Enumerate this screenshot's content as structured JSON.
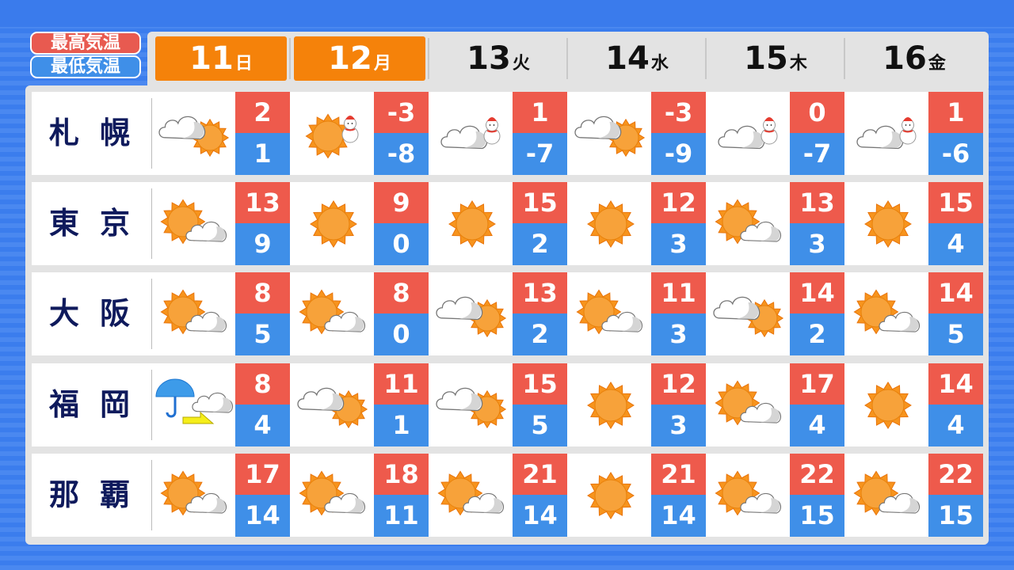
{
  "legend": {
    "high": "最高気温",
    "low": "最低気温"
  },
  "colors": {
    "high": "#ee5a4c",
    "low": "#3f8fe8",
    "today": "#f5820a",
    "city": "#0f1a5c"
  },
  "days": [
    {
      "num": "11",
      "wd": "日",
      "highlight": true
    },
    {
      "num": "12",
      "wd": "月",
      "highlight": true
    },
    {
      "num": "13",
      "wd": "火",
      "highlight": false
    },
    {
      "num": "14",
      "wd": "水",
      "highlight": false
    },
    {
      "num": "15",
      "wd": "木",
      "highlight": false
    },
    {
      "num": "16",
      "wd": "金",
      "highlight": false
    }
  ],
  "cities": [
    {
      "name": "札幌",
      "forecast": [
        {
          "icon": "cloudy-then-sunny",
          "high": "2",
          "low": "1"
        },
        {
          "icon": "sunny-with-snow",
          "high": "-3",
          "low": "-8"
        },
        {
          "icon": "cloudy-with-snow",
          "high": "1",
          "low": "-7"
        },
        {
          "icon": "cloudy-then-sunny",
          "high": "-3",
          "low": "-9"
        },
        {
          "icon": "cloudy-with-snow",
          "high": "0",
          "low": "-7"
        },
        {
          "icon": "cloudy-with-snow",
          "high": "1",
          "low": "-6"
        }
      ]
    },
    {
      "name": "東京",
      "forecast": [
        {
          "icon": "sunny-then-cloudy",
          "high": "13",
          "low": "9"
        },
        {
          "icon": "sunny",
          "high": "9",
          "low": "0"
        },
        {
          "icon": "sunny",
          "high": "15",
          "low": "2"
        },
        {
          "icon": "sunny",
          "high": "12",
          "low": "3"
        },
        {
          "icon": "sunny-then-cloudy",
          "high": "13",
          "low": "3"
        },
        {
          "icon": "sunny",
          "high": "15",
          "low": "4"
        }
      ]
    },
    {
      "name": "大阪",
      "forecast": [
        {
          "icon": "sunny-then-cloudy",
          "high": "8",
          "low": "5"
        },
        {
          "icon": "sunny-then-cloudy",
          "high": "8",
          "low": "0"
        },
        {
          "icon": "cloudy-then-sunny",
          "high": "13",
          "low": "2"
        },
        {
          "icon": "sunny-then-cloudy",
          "high": "11",
          "low": "3"
        },
        {
          "icon": "cloudy-then-sunny",
          "high": "14",
          "low": "2"
        },
        {
          "icon": "sunny-then-cloudy",
          "high": "14",
          "low": "5"
        }
      ]
    },
    {
      "name": "福岡",
      "forecast": [
        {
          "icon": "rain-then-cloudy",
          "high": "8",
          "low": "4"
        },
        {
          "icon": "cloudy-then-sunny",
          "high": "11",
          "low": "1"
        },
        {
          "icon": "cloudy-then-sunny",
          "high": "15",
          "low": "5"
        },
        {
          "icon": "sunny",
          "high": "12",
          "low": "3"
        },
        {
          "icon": "sunny-then-cloudy",
          "high": "17",
          "low": "4"
        },
        {
          "icon": "sunny",
          "high": "14",
          "low": "4"
        }
      ]
    },
    {
      "name": "那覇",
      "forecast": [
        {
          "icon": "sunny-then-cloudy",
          "high": "17",
          "low": "14"
        },
        {
          "icon": "sunny-then-cloudy",
          "high": "18",
          "low": "11"
        },
        {
          "icon": "sunny-then-cloudy",
          "high": "21",
          "low": "14"
        },
        {
          "icon": "sunny",
          "high": "21",
          "low": "14"
        },
        {
          "icon": "sunny-then-cloudy",
          "high": "22",
          "low": "15"
        },
        {
          "icon": "sunny-then-cloudy",
          "high": "22",
          "low": "15"
        }
      ]
    }
  ]
}
